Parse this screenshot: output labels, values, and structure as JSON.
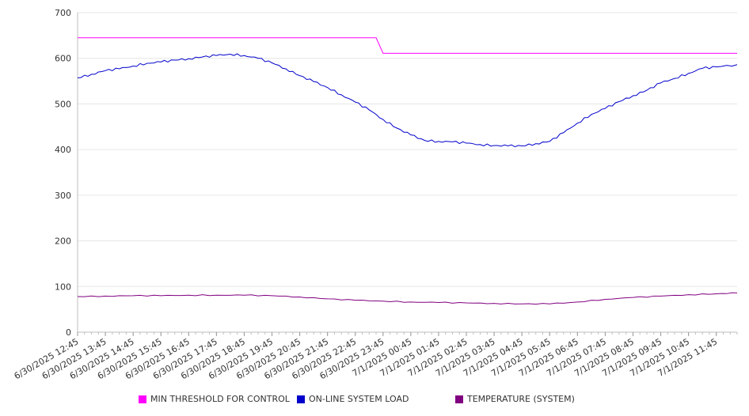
{
  "chart_data": {
    "type": "line",
    "x": [
      "6/30/2025 12:45",
      "6/30/2025 13:45",
      "6/30/2025 14:45",
      "6/30/2025 15:45",
      "6/30/2025 16:45",
      "6/30/2025 17:45",
      "6/30/2025 18:45",
      "6/30/2025 19:45",
      "6/30/2025 20:45",
      "6/30/2025 21:45",
      "6/30/2025 22:45",
      "6/30/2025 23:45",
      "7/1/2025 00:45",
      "7/1/2025 01:45",
      "7/1/2025 02:45",
      "7/1/2025 03:45",
      "7/1/2025 04:45",
      "7/1/2025 05:45",
      "7/1/2025 06:45",
      "7/1/2025 07:45",
      "7/1/2025 08:45",
      "7/1/2025 09:45",
      "7/1/2025 10:45",
      "7/1/2025 11:45"
    ],
    "x_end": "7/1/2025 12:30",
    "ylim": [
      0,
      700
    ],
    "yticks": [
      0,
      100,
      200,
      300,
      400,
      500,
      600,
      700
    ],
    "grid": true,
    "legend_position": "bottom",
    "series": [
      {
        "name": "MIN THRESHOLD FOR CONTROL",
        "color": "#ff00ff",
        "points": [
          [
            "6/30/2025 12:45",
            645
          ],
          [
            "6/30/2025 23:30",
            645
          ],
          [
            "6/30/2025 23:45",
            611
          ],
          [
            "7/1/2025 12:30",
            611
          ]
        ]
      },
      {
        "name": "ON-LINE SYSTEM LOAD",
        "color": "#0000cc",
        "points": [
          [
            "6/30/2025 12:45",
            557
          ],
          [
            "6/30/2025 13:15",
            565
          ],
          [
            "6/30/2025 13:45",
            573
          ],
          [
            "6/30/2025 14:15",
            577
          ],
          [
            "6/30/2025 14:45",
            583
          ],
          [
            "6/30/2025 15:15",
            589
          ],
          [
            "6/30/2025 15:45",
            592
          ],
          [
            "6/30/2025 16:15",
            596
          ],
          [
            "6/30/2025 16:45",
            599
          ],
          [
            "6/30/2025 17:15",
            603
          ],
          [
            "6/30/2025 17:45",
            606
          ],
          [
            "6/30/2025 18:15",
            609
          ],
          [
            "6/30/2025 18:45",
            606
          ],
          [
            "6/30/2025 19:15",
            600
          ],
          [
            "6/30/2025 19:45",
            590
          ],
          [
            "6/30/2025 20:15",
            577
          ],
          [
            "6/30/2025 20:45",
            562
          ],
          [
            "6/30/2025 21:15",
            549
          ],
          [
            "6/30/2025 21:45",
            536
          ],
          [
            "6/30/2025 22:15",
            520
          ],
          [
            "6/30/2025 22:45",
            504
          ],
          [
            "6/30/2025 23:15",
            487
          ],
          [
            "6/30/2025 23:45",
            466
          ],
          [
            "7/1/2025 00:15",
            447
          ],
          [
            "7/1/2025 00:45",
            432
          ],
          [
            "7/1/2025 01:15",
            420
          ],
          [
            "7/1/2025 01:45",
            418
          ],
          [
            "7/1/2025 02:15",
            417
          ],
          [
            "7/1/2025 02:45",
            414
          ],
          [
            "7/1/2025 03:15",
            411
          ],
          [
            "7/1/2025 03:45",
            409
          ],
          [
            "7/1/2025 04:15",
            408
          ],
          [
            "7/1/2025 04:45",
            408
          ],
          [
            "7/1/2025 05:15",
            413
          ],
          [
            "7/1/2025 05:45",
            418
          ],
          [
            "7/1/2025 06:15",
            437
          ],
          [
            "7/1/2025 06:45",
            458
          ],
          [
            "7/1/2025 07:15",
            477
          ],
          [
            "7/1/2025 07:45",
            490
          ],
          [
            "7/1/2025 08:15",
            505
          ],
          [
            "7/1/2025 08:45",
            518
          ],
          [
            "7/1/2025 09:15",
            530
          ],
          [
            "7/1/2025 09:45",
            546
          ],
          [
            "7/1/2025 10:15",
            556
          ],
          [
            "7/1/2025 10:45",
            567
          ],
          [
            "7/1/2025 11:15",
            578
          ],
          [
            "7/1/2025 11:45",
            581
          ],
          [
            "7/1/2025 12:30",
            586
          ]
        ]
      },
      {
        "name": "TEMPERATURE (SYSTEM)",
        "color": "#800080",
        "points": [
          [
            "6/30/2025 12:45",
            78
          ],
          [
            "6/30/2025 13:45",
            79
          ],
          [
            "6/30/2025 14:45",
            80
          ],
          [
            "6/30/2025 15:45",
            80
          ],
          [
            "6/30/2025 16:45",
            81
          ],
          [
            "6/30/2025 17:45",
            81
          ],
          [
            "6/30/2025 18:45",
            81
          ],
          [
            "6/30/2025 19:45",
            80
          ],
          [
            "6/30/2025 20:45",
            77
          ],
          [
            "6/30/2025 21:45",
            73
          ],
          [
            "6/30/2025 22:45",
            70
          ],
          [
            "6/30/2025 23:45",
            68
          ],
          [
            "7/1/2025 00:45",
            66
          ],
          [
            "7/1/2025 01:45",
            65
          ],
          [
            "7/1/2025 02:45",
            64
          ],
          [
            "7/1/2025 03:45",
            63
          ],
          [
            "7/1/2025 04:45",
            62
          ],
          [
            "7/1/2025 05:45",
            62
          ],
          [
            "7/1/2025 06:45",
            66
          ],
          [
            "7/1/2025 07:45",
            72
          ],
          [
            "7/1/2025 08:45",
            76
          ],
          [
            "7/1/2025 09:45",
            79
          ],
          [
            "7/1/2025 10:45",
            82
          ],
          [
            "7/1/2025 11:45",
            84
          ],
          [
            "7/1/2025 12:30",
            86
          ]
        ]
      }
    ]
  }
}
